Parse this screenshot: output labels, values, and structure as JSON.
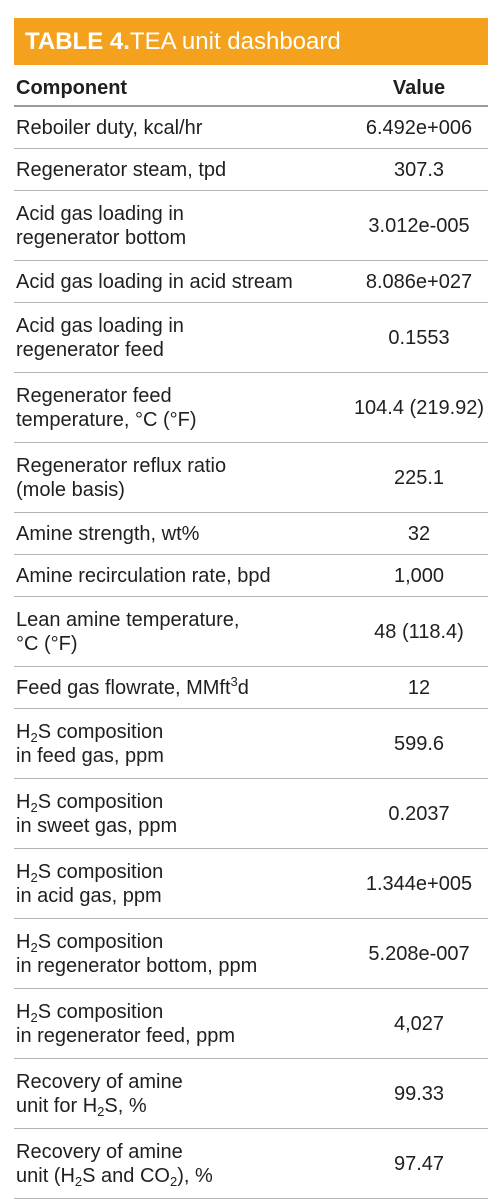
{
  "title": {
    "label": "TABLE 4.",
    "text": " TEA unit dashboard"
  },
  "header": {
    "component": "Component",
    "value": "Value"
  },
  "rows": [
    {
      "l1": "Reboiler duty, kcal/hr",
      "value": "6.492e+006"
    },
    {
      "l1": "Regenerator steam, tpd",
      "value": "307.3"
    },
    {
      "l1": "Acid gas loading in",
      "l2": "regenerator bottom",
      "value": "3.012e-005"
    },
    {
      "l1": "Acid gas loading in acid stream",
      "value": "8.086e+027"
    },
    {
      "l1": "Acid gas loading in",
      "l2": "regenerator feed",
      "value": "0.1553"
    },
    {
      "l1": "Regenerator feed",
      "l2": "temperature, °C (°F)",
      "value": "104.4 (219.92)"
    },
    {
      "l1": "Regenerator reflux ratio",
      "l2": "(mole basis)",
      "value": "225.1"
    },
    {
      "l1": "Amine strength, wt%",
      "value": "32"
    },
    {
      "l1": "Amine recirculation rate, bpd",
      "value": "1,000"
    },
    {
      "l1": "Lean amine temperature,",
      "l2": "°C (°F)",
      "value": "48 (118.4)"
    },
    {
      "l1_pre": "Feed gas flowrate, MMft",
      "l1_sup": "3",
      "l1_post": "d",
      "value": "12"
    },
    {
      "l1_pre": "H",
      "l1_sub": "2",
      "l1_post": "S composition",
      "l2": "in feed gas, ppm",
      "value": "599.6"
    },
    {
      "l1_pre": "H",
      "l1_sub": "2",
      "l1_post": "S composition",
      "l2": "in sweet gas, ppm",
      "value": "0.2037"
    },
    {
      "l1_pre": "H",
      "l1_sub": "2",
      "l1_post": "S composition",
      "l2": "in acid gas, ppm",
      "value": "1.344e+005"
    },
    {
      "l1_pre": "H",
      "l1_sub": "2",
      "l1_post": "S composition",
      "l2": "in regenerator bottom, ppm",
      "value": "5.208e-007"
    },
    {
      "l1_pre": "H",
      "l1_sub": "2",
      "l1_post": "S composition",
      "l2": "in regenerator feed, ppm",
      "value": "4,027"
    },
    {
      "l1": "Recovery of amine",
      "l2_pre": "unit for H",
      "l2_sub": "2",
      "l2_post": "S, %",
      "value": "99.33"
    },
    {
      "l1": "Recovery of amine",
      "l2_pre": "unit (H",
      "l2_sub": "2",
      "l2_mid": "S and CO",
      "l2_sub2": "2",
      "l2_post": "), %",
      "value": "97.47"
    }
  ]
}
